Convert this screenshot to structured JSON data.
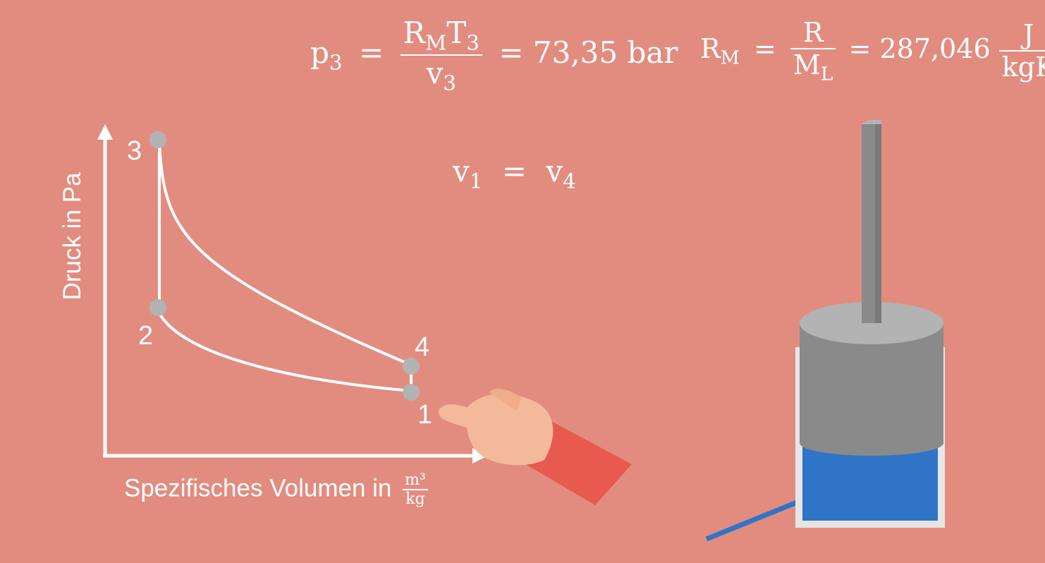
{
  "formula_p3": {
    "lhs": "p",
    "lhs_sub": "3",
    "num_a": "R",
    "num_a_sub": "M",
    "num_b": "T",
    "num_b_sub": "3",
    "den": "v",
    "den_sub": "3",
    "result": "= 73,35 bar"
  },
  "formula_rm": {
    "lhs": "R",
    "lhs_sub": "M",
    "num": "R",
    "den": "M",
    "den_sub": "L",
    "value": "= 287,046",
    "unit_num": "J",
    "unit_den": "kgK"
  },
  "formula_v": {
    "a": "v",
    "a_sub": "1",
    "eq": "=",
    "b": "v",
    "b_sub": "4"
  },
  "pv_diagram": {
    "y_axis_label": "Druck in Pa",
    "x_axis_label": "Spezifisches Volumen in",
    "x_unit_num": "m³",
    "x_unit_den": "kg",
    "points": [
      {
        "label": "1"
      },
      {
        "label": "2"
      },
      {
        "label": "3"
      },
      {
        "label": "4"
      }
    ]
  },
  "colors": {
    "background": "#e28c80",
    "point": "#b3b3b3",
    "water": "#2f74c7",
    "piston": "#8a8a8a",
    "sleeve": "#e85a4f",
    "hand": "#f4b99a"
  }
}
